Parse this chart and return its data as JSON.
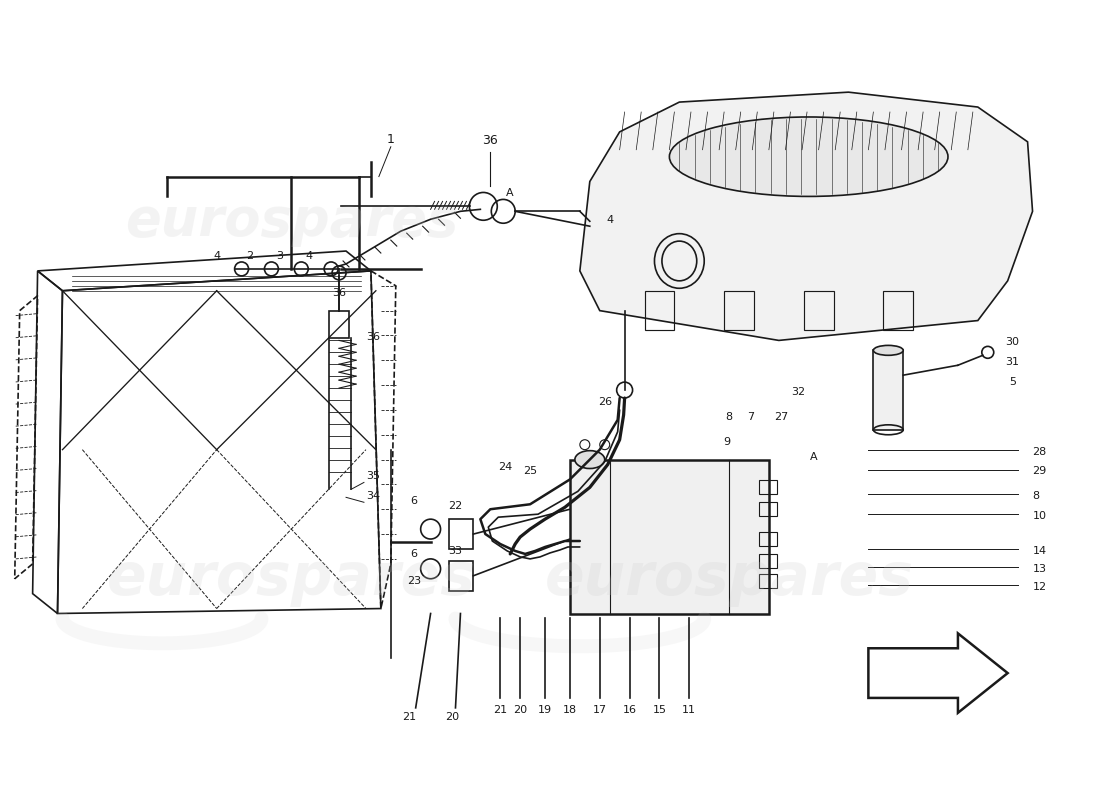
{
  "bg_color": "#ffffff",
  "line_color": "#1a1a1a",
  "wm_color": "#cccccc",
  "wm_text": "eurospares",
  "figsize": [
    11.0,
    8.0
  ],
  "dpi": 100
}
